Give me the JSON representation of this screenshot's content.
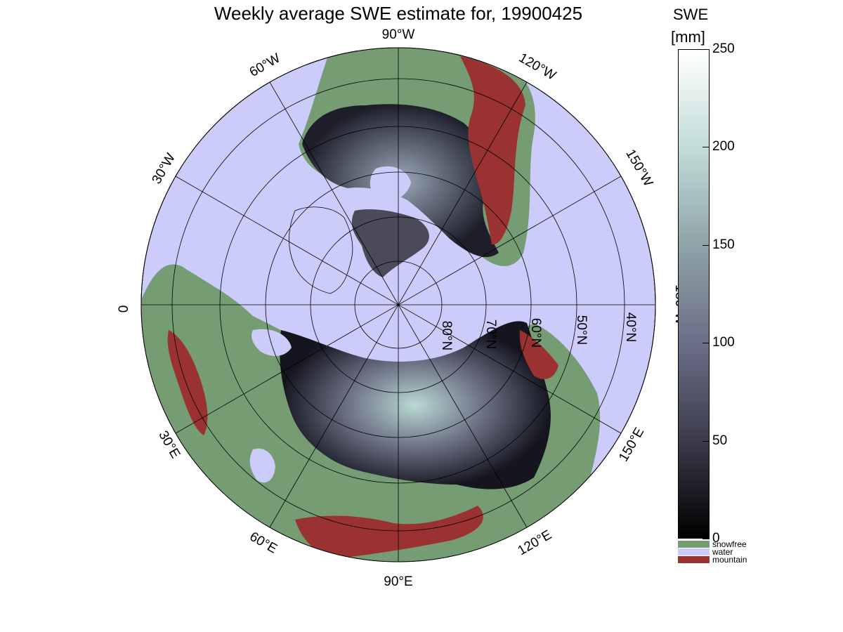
{
  "title": "Weekly average SWE estimate for, 19900425",
  "colorbar": {
    "title_line1": "SWE",
    "title_line2": "[mm]",
    "min": 0,
    "max": 250,
    "ticks": [
      {
        "value": 0,
        "label": "0"
      },
      {
        "value": 50,
        "label": "50"
      },
      {
        "value": 100,
        "label": "100"
      },
      {
        "value": 150,
        "label": "150"
      },
      {
        "value": 200,
        "label": "200"
      },
      {
        "value": 250,
        "label": "250"
      }
    ],
    "gradient_colors": [
      "#000000",
      "#3c3c4c",
      "#6b6f86",
      "#8fa3a8",
      "#c2dcd8",
      "#ffffff"
    ]
  },
  "legend": [
    {
      "label": "snowfree",
      "color": "#759c73"
    },
    {
      "label": "water",
      "color": "#ccccfa"
    },
    {
      "label": "mountain",
      "color": "#9a3232"
    }
  ],
  "map": {
    "projection": "north polar stereographic",
    "water_color": "#ccccfa",
    "snowfree_color": "#759c73",
    "mountain_color": "#9a3232",
    "longitude_labels": [
      "90°W",
      "60°W",
      "120°W",
      "30°W",
      "150°W",
      "0",
      "180°W",
      "30°E",
      "150°E",
      "60°E",
      "120°E",
      "90°E"
    ],
    "latitude_labels": [
      "80°N",
      "70°N",
      "60°N",
      "50°N",
      "40°N"
    ]
  }
}
